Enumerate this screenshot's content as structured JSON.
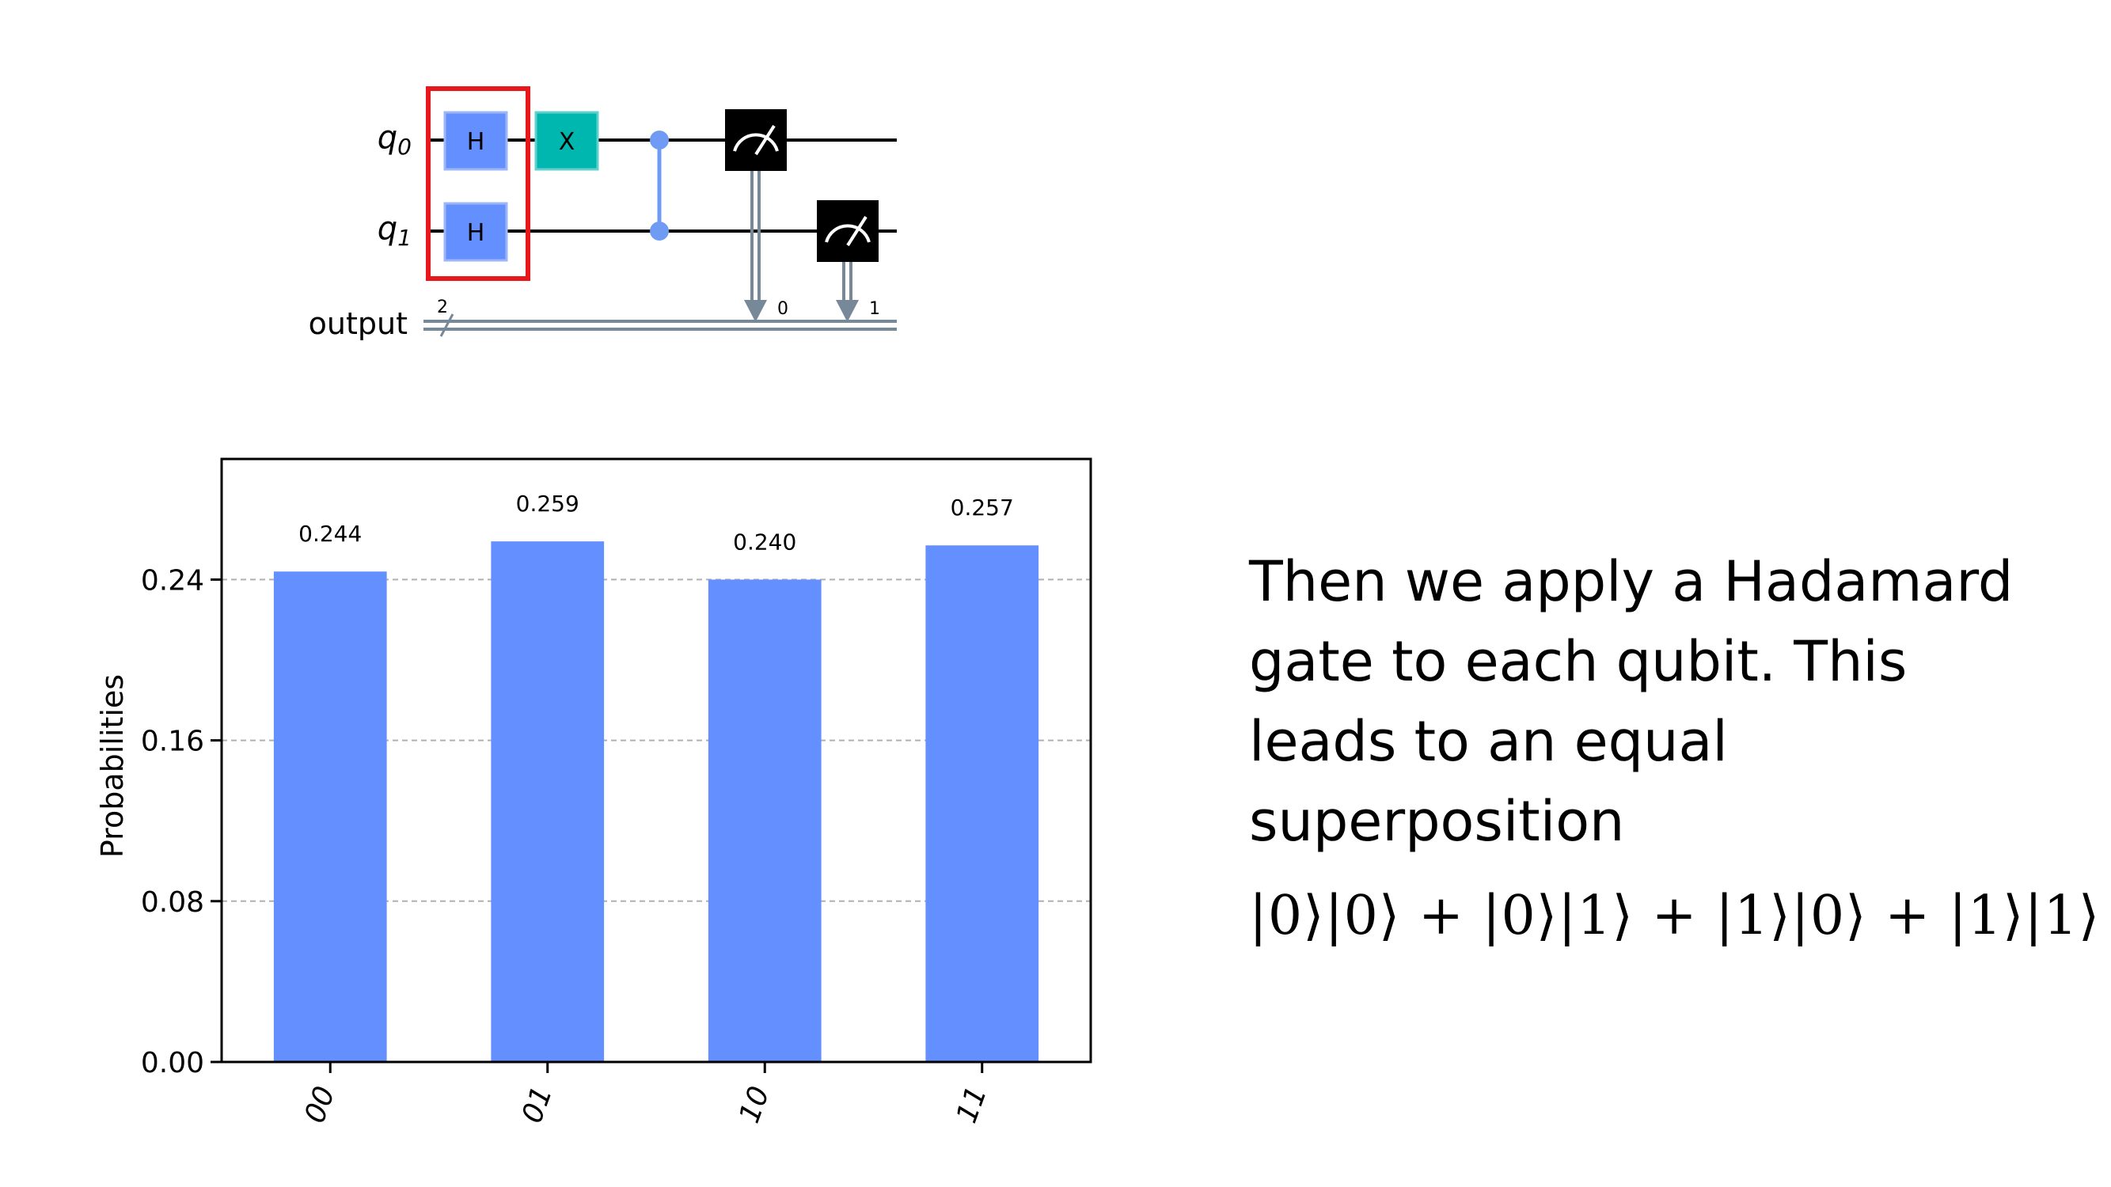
{
  "circuit": {
    "qubits": [
      {
        "letter": "q",
        "index": "0"
      },
      {
        "letter": "q",
        "index": "1"
      }
    ],
    "classical_register": {
      "label": "output",
      "width": "2",
      "bit_labels": [
        "0",
        "1"
      ]
    },
    "gates": {
      "hadamard": "H",
      "pauli_x": "X"
    },
    "highlight_color": "#e8171b",
    "gate_colors": {
      "hadamard": "#648fff",
      "pauli_x": "#00b7b0",
      "measure": "#000000",
      "control": "#6f9bf4",
      "classical": "#778899"
    }
  },
  "chart_data": {
    "type": "bar",
    "categories": [
      "00",
      "01",
      "10",
      "11"
    ],
    "values": [
      0.244,
      0.259,
      0.24,
      0.257
    ],
    "data_labels": [
      "0.244",
      "0.259",
      "0.240",
      "0.257"
    ],
    "title": "",
    "xlabel": "",
    "ylabel": "Probabilities",
    "yticks": [
      "0.00",
      "0.08",
      "0.16",
      "0.24"
    ],
    "ylim": [
      0,
      0.3
    ],
    "grid": "horizontal dashed",
    "bar_color": "#648fff"
  },
  "caption": {
    "lines": [
      "Then we apply a Hadamard",
      "gate  to each qubit. This",
      "leads to an equal",
      "superposition"
    ]
  },
  "formula": {
    "text": "|0⟩|0⟩ + |0⟩|1⟩ + |1⟩|0⟩ + |1⟩|1⟩"
  }
}
